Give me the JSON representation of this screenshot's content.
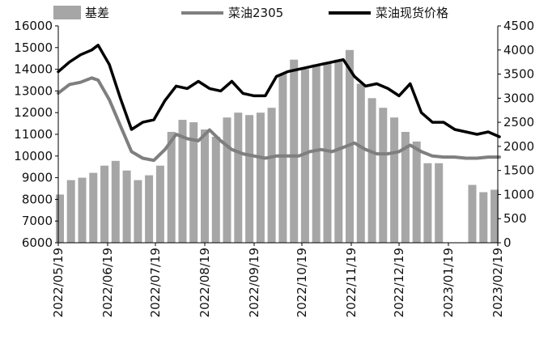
{
  "chart_data": {
    "type": "bar+line",
    "legend": {
      "placement": "top",
      "entries": [
        "基差",
        "菜油2305",
        "菜油现货价格"
      ]
    },
    "colors": {
      "basis": "#a6a6a6",
      "futures": "#7f7f7f",
      "spot": "#000000"
    },
    "y_left": {
      "ticks": [
        "6000",
        "7000",
        "8000",
        "9000",
        "10000",
        "11000",
        "12000",
        "13000",
        "14000",
        "15000",
        "16000"
      ],
      "range": [
        6000,
        16000
      ]
    },
    "y_right": {
      "ticks": [
        "0",
        "500",
        "1000",
        "1500",
        "2000",
        "2500",
        "3000",
        "3500",
        "4000",
        "4500"
      ],
      "range": [
        0,
        4500
      ]
    },
    "x_ticks": [
      "2022/05/19",
      "2022/06/19",
      "2022/07/19",
      "2022/08/19",
      "2022/09/19",
      "2022/10/19",
      "2022/11/19",
      "2022/12/19",
      "2023/01/19",
      "2023/02/19"
    ],
    "x_range": [
      "2022-05-19",
      "2023-02-19"
    ],
    "grid": false,
    "series": [
      {
        "name": "基差",
        "axis": "right",
        "kind": "bar",
        "points": [
          [
            "2022-05-20",
            1000
          ],
          [
            "2022-05-27",
            1300
          ],
          [
            "2022-06-03",
            1350
          ],
          [
            "2022-06-10",
            1450
          ],
          [
            "2022-06-17",
            1600
          ],
          [
            "2022-06-24",
            1700
          ],
          [
            "2022-07-01",
            1500
          ],
          [
            "2022-07-08",
            1300
          ],
          [
            "2022-07-15",
            1400
          ],
          [
            "2022-07-22",
            1600
          ],
          [
            "2022-07-29",
            2300
          ],
          [
            "2022-08-05",
            2550
          ],
          [
            "2022-08-12",
            2500
          ],
          [
            "2022-08-19",
            2350
          ],
          [
            "2022-08-26",
            2200
          ],
          [
            "2022-09-02",
            2600
          ],
          [
            "2022-09-09",
            2700
          ],
          [
            "2022-09-16",
            2650
          ],
          [
            "2022-09-23",
            2700
          ],
          [
            "2022-09-30",
            2800
          ],
          [
            "2022-10-07",
            3500
          ],
          [
            "2022-10-14",
            3800
          ],
          [
            "2022-10-21",
            3600
          ],
          [
            "2022-10-28",
            3700
          ],
          [
            "2022-11-04",
            3750
          ],
          [
            "2022-11-11",
            3800
          ],
          [
            "2022-11-18",
            4000
          ],
          [
            "2022-11-25",
            3300
          ],
          [
            "2022-12-02",
            3000
          ],
          [
            "2022-12-09",
            2800
          ],
          [
            "2022-12-16",
            2600
          ],
          [
            "2022-12-23",
            2300
          ],
          [
            "2022-12-30",
            2100
          ],
          [
            "2023-01-06",
            1650
          ],
          [
            "2023-01-13",
            1650
          ],
          [
            "2023-01-20",
            null
          ],
          [
            "2023-01-27",
            null
          ],
          [
            "2023-02-03",
            1200
          ],
          [
            "2023-02-10",
            1050
          ],
          [
            "2023-02-17",
            1100
          ]
        ]
      },
      {
        "name": "菜油2305",
        "axis": "left",
        "kind": "line",
        "points": [
          [
            "2022-05-19",
            12900
          ],
          [
            "2022-05-26",
            13300
          ],
          [
            "2022-06-02",
            13400
          ],
          [
            "2022-06-09",
            13600
          ],
          [
            "2022-06-13",
            13500
          ],
          [
            "2022-06-20",
            12600
          ],
          [
            "2022-06-27",
            11400
          ],
          [
            "2022-07-04",
            10200
          ],
          [
            "2022-07-11",
            9900
          ],
          [
            "2022-07-18",
            9800
          ],
          [
            "2022-07-25",
            10300
          ],
          [
            "2022-08-01",
            11000
          ],
          [
            "2022-08-08",
            10800
          ],
          [
            "2022-08-15",
            10700
          ],
          [
            "2022-08-22",
            11200
          ],
          [
            "2022-08-29",
            10700
          ],
          [
            "2022-09-05",
            10300
          ],
          [
            "2022-09-12",
            10100
          ],
          [
            "2022-09-19",
            10000
          ],
          [
            "2022-09-26",
            9900
          ],
          [
            "2022-10-03",
            10000
          ],
          [
            "2022-10-10",
            10000
          ],
          [
            "2022-10-17",
            10000
          ],
          [
            "2022-10-24",
            10200
          ],
          [
            "2022-10-31",
            10300
          ],
          [
            "2022-11-07",
            10200
          ],
          [
            "2022-11-14",
            10400
          ],
          [
            "2022-11-21",
            10600
          ],
          [
            "2022-11-28",
            10300
          ],
          [
            "2022-12-05",
            10100
          ],
          [
            "2022-12-12",
            10100
          ],
          [
            "2022-12-19",
            10200
          ],
          [
            "2022-12-26",
            10500
          ],
          [
            "2023-01-02",
            10200
          ],
          [
            "2023-01-09",
            10000
          ],
          [
            "2023-01-16",
            9950
          ],
          [
            "2023-01-23",
            9950
          ],
          [
            "2023-01-30",
            9900
          ],
          [
            "2023-02-06",
            9900
          ],
          [
            "2023-02-13",
            9950
          ],
          [
            "2023-02-20",
            9950
          ]
        ]
      },
      {
        "name": "菜油现货价格",
        "axis": "right",
        "kind": "line",
        "points": [
          [
            "2022-05-19",
            3550
          ],
          [
            "2022-05-26",
            3750
          ],
          [
            "2022-06-02",
            3900
          ],
          [
            "2022-06-09",
            4000
          ],
          [
            "2022-06-13",
            4100
          ],
          [
            "2022-06-20",
            3700
          ],
          [
            "2022-06-27",
            3000
          ],
          [
            "2022-07-04",
            2350
          ],
          [
            "2022-07-11",
            2500
          ],
          [
            "2022-07-18",
            2550
          ],
          [
            "2022-07-25",
            2950
          ],
          [
            "2022-08-01",
            3250
          ],
          [
            "2022-08-08",
            3200
          ],
          [
            "2022-08-15",
            3350
          ],
          [
            "2022-08-22",
            3200
          ],
          [
            "2022-08-29",
            3150
          ],
          [
            "2022-09-05",
            3350
          ],
          [
            "2022-09-12",
            3100
          ],
          [
            "2022-09-19",
            3050
          ],
          [
            "2022-09-26",
            3050
          ],
          [
            "2022-10-03",
            3450
          ],
          [
            "2022-10-10",
            3550
          ],
          [
            "2022-10-17",
            3600
          ],
          [
            "2022-10-24",
            3650
          ],
          [
            "2022-10-31",
            3700
          ],
          [
            "2022-11-07",
            3750
          ],
          [
            "2022-11-14",
            3800
          ],
          [
            "2022-11-21",
            3450
          ],
          [
            "2022-11-28",
            3250
          ],
          [
            "2022-12-05",
            3300
          ],
          [
            "2022-12-12",
            3200
          ],
          [
            "2022-12-19",
            3050
          ],
          [
            "2022-12-26",
            3300
          ],
          [
            "2023-01-02",
            2700
          ],
          [
            "2023-01-09",
            2500
          ],
          [
            "2023-01-16",
            2500
          ],
          [
            "2023-01-23",
            2350
          ],
          [
            "2023-01-30",
            2300
          ],
          [
            "2023-02-06",
            2250
          ],
          [
            "2023-02-13",
            2300
          ],
          [
            "2023-02-20",
            2200
          ]
        ]
      }
    ]
  }
}
